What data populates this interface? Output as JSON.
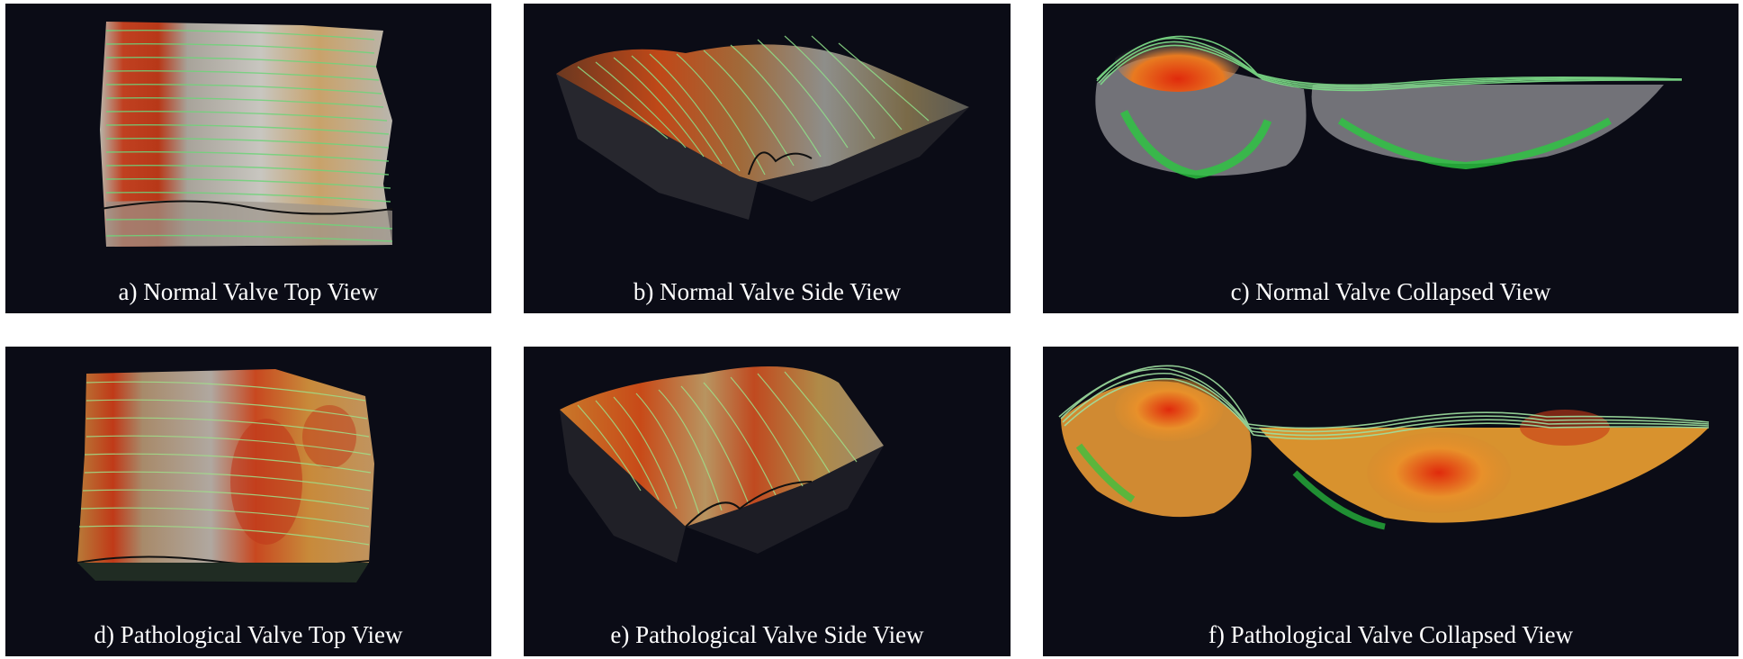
{
  "figure": {
    "panels": [
      {
        "id": "a",
        "caption": "a) Normal Valve Top View"
      },
      {
        "id": "b",
        "caption": "b) Normal Valve Side View"
      },
      {
        "id": "c",
        "caption": "c) Normal Valve Collapsed View"
      },
      {
        "id": "d",
        "caption": "d) Pathological Valve Top View"
      },
      {
        "id": "e",
        "caption": "e) Pathological Valve Side View"
      },
      {
        "id": "f",
        "caption": "f) Pathological Valve Collapsed View"
      }
    ],
    "colors": {
      "panel_background": "#0b0c16",
      "caption_text": "#ffffff",
      "surface_gray": "#9a9aa0",
      "stress_high": "#d42a10",
      "stress_mid": "#e8932a",
      "contour_line": "#7fe08a",
      "underside_green": "#25c03a"
    }
  }
}
